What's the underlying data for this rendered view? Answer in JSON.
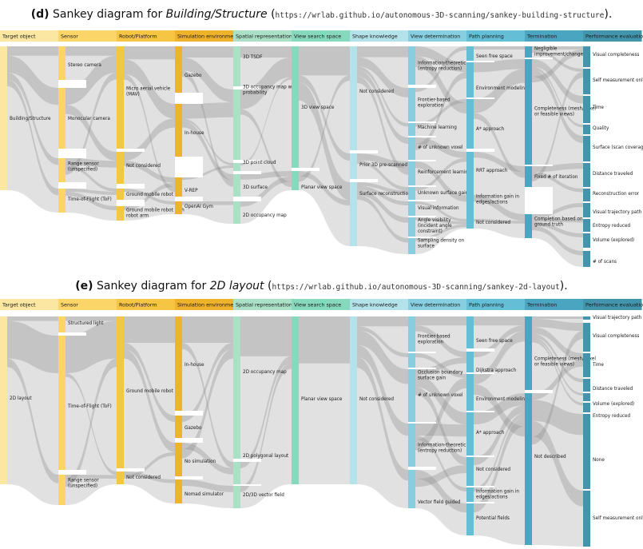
{
  "diagrams": [
    {
      "label": "(d)",
      "title_prefix": "Sankey diagram for ",
      "title_italic": "Building/Structure",
      "url": "https://wrlab.github.io/autonomous-3D-scanning/sankey-building-structure",
      "columns": [
        {
          "header": "Target object",
          "color": "#fbe7a2",
          "nodes": [
            "Building/Structure"
          ]
        },
        {
          "header": "Sensor",
          "color": "#fcd569",
          "nodes": [
            "Stereo camera",
            "Monocular camera",
            "Range sensor (unspecified)",
            "Time-of-Flight (ToF)"
          ]
        },
        {
          "header": "Robot/Platform",
          "color": "#f7c544",
          "nodes": [
            "Micro aerial vehicle (MAV)",
            "Not considered",
            "Ground mobile robot",
            "Ground mobile robot with robot arm"
          ]
        },
        {
          "header": "Simulation environment",
          "color": "#efb22b",
          "nodes": [
            "Gazebo",
            "In-house",
            "V-REP",
            "OpenAI Gym"
          ]
        },
        {
          "header": "Spatial representation",
          "color": "#a9e0c6",
          "nodes": [
            "3D TSDF",
            "3D occupancy map with probability",
            "3D point cloud",
            "3D surface",
            "2D occupancy map"
          ]
        },
        {
          "header": "View search space",
          "color": "#86d9bd",
          "nodes": [
            "3D view space",
            "Planar view space"
          ]
        },
        {
          "header": "Shape knowledge",
          "color": "#b3e2ea",
          "nodes": [
            "Not considered",
            "Prior 3D pre-scanned",
            "Surface reconstruction"
          ]
        },
        {
          "header": "View determination",
          "color": "#86cee0",
          "nodes": [
            "Information-theoretic (entropy reduction)",
            "Frontier-based exploration",
            "Machine learning",
            "# of unknown voxel",
            "Reinforcement learning",
            "Unknown surface gain",
            "Visual information",
            "Angle visibility (incident angle constraint)",
            "Sampling density on surface"
          ]
        },
        {
          "header": "Path planning",
          "color": "#63bed6",
          "nodes": [
            "Seen free space",
            "Environment modeling",
            "A* approach",
            "RRT approach",
            "Information gain in edges/actions",
            "Not considered"
          ]
        },
        {
          "header": "Termination",
          "color": "#4aa6c0",
          "nodes": [
            "Negligible improvement/change",
            "Completeness (mesh/voxel or feasible views)",
            "Fixed # of iteration",
            "Completion based on ground truth"
          ]
        },
        {
          "header": "Performance evaluation",
          "color": "#4195ad",
          "nodes": [
            "Visual completeness",
            "Self measurement only",
            "Time",
            "Quality",
            "Surface (scan coverage)",
            "Distance traveled",
            "Reconstruction error",
            "Visual trajectory path",
            "Entropy reduced",
            "Volume (explored)",
            "# of scans"
          ]
        }
      ]
    },
    {
      "label": "(e)",
      "title_prefix": "Sankey diagram for ",
      "title_italic": "2D layout",
      "url": "https://wrlab.github.io/autonomous-3D-scanning/sankey-2d-layout",
      "columns": [
        {
          "header": "Target object",
          "color": "#fbe7a2",
          "nodes": [
            "2D layout"
          ]
        },
        {
          "header": "Sensor",
          "color": "#fcd569",
          "nodes": [
            "Structured light",
            "Time-of-Flight (ToF)",
            "Range sensor (unspecified)"
          ]
        },
        {
          "header": "Robot/Platform",
          "color": "#f7c544",
          "nodes": [
            "Ground mobile robot",
            "Not considered"
          ]
        },
        {
          "header": "Simulation environment",
          "color": "#efb22b",
          "nodes": [
            "In-house",
            "Gazebo",
            "No simulation",
            "Nomad simulator"
          ]
        },
        {
          "header": "Spatial representation",
          "color": "#a9e0c6",
          "nodes": [
            "2D occupancy map",
            "2D polygonal layout",
            "2D/3D vector field"
          ]
        },
        {
          "header": "View search space",
          "color": "#86d9bd",
          "nodes": [
            "Planar view space"
          ]
        },
        {
          "header": "Shape knowledge",
          "color": "#b3e2ea",
          "nodes": [
            "Not considered"
          ]
        },
        {
          "header": "View determination",
          "color": "#86cee0",
          "nodes": [
            "Frontier-based exploration",
            "Occlusion boundary surface gain",
            "# of unknown voxel",
            "Information-theoretic (entropy reduction)",
            "Vector field guided"
          ]
        },
        {
          "header": "Path planning",
          "color": "#63bed6",
          "nodes": [
            "Seen free space",
            "Dijkstra approach",
            "Environment modeling",
            "A* approach",
            "Not considered",
            "Information gain in edges/actions",
            "Potential fields"
          ]
        },
        {
          "header": "Termination",
          "color": "#4aa6c0",
          "nodes": [
            "Completeness (mesh/voxel or feasible views)",
            "Not described"
          ]
        },
        {
          "header": "Performance evaluation",
          "color": "#4195ad",
          "nodes": [
            "Visual trajectory path",
            "Visual completeness",
            "Time",
            "Distance traveled",
            "Volume (explored)",
            "Entropy reduced",
            "None",
            "Self measurement only"
          ]
        }
      ]
    }
  ]
}
